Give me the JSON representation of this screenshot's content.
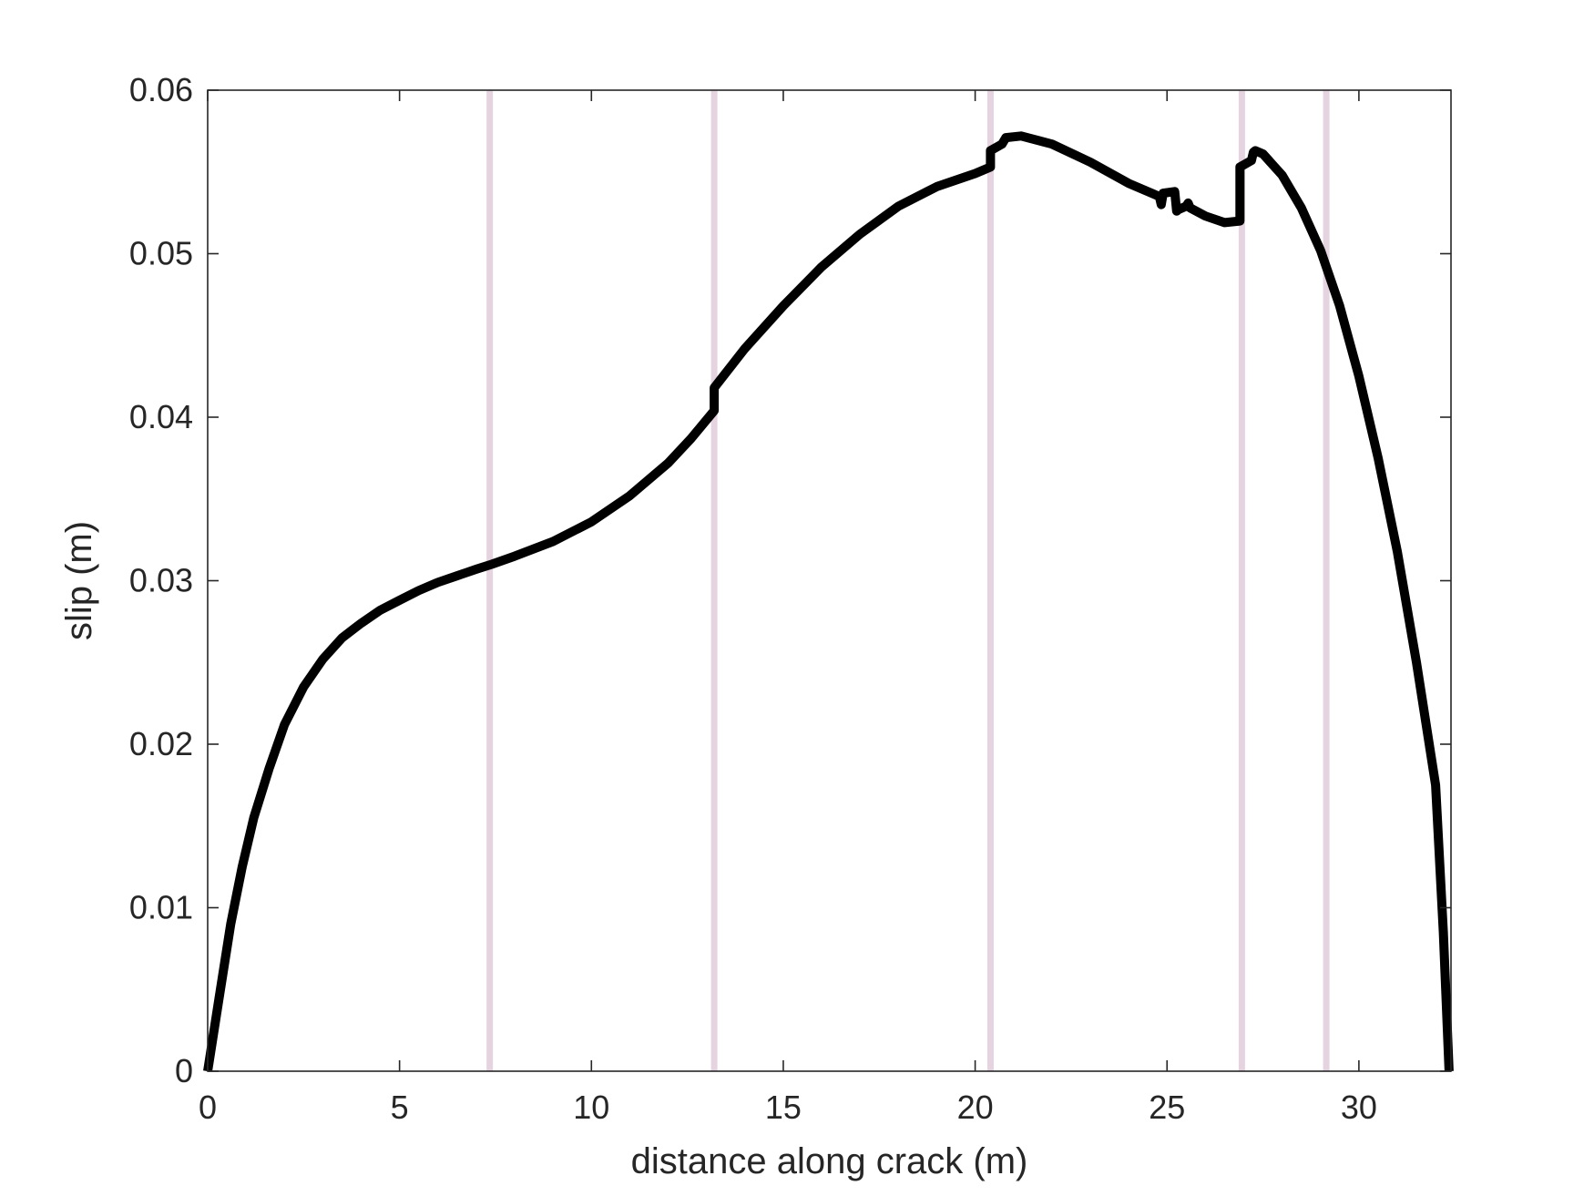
{
  "chart_data": {
    "type": "line",
    "title": "",
    "xlabel": "distance along crack (m)",
    "ylabel": "slip (m)",
    "xlim": [
      0,
      32.4
    ],
    "ylim": [
      0,
      0.06
    ],
    "grid": false,
    "legend": "none",
    "xticks": [
      0,
      5,
      10,
      15,
      20,
      25,
      30
    ],
    "xtick_labels": [
      "0",
      "5",
      "10",
      "15",
      "20",
      "25",
      "30"
    ],
    "yticks": [
      0,
      0.01,
      0.02,
      0.03,
      0.04,
      0.05,
      0.06
    ],
    "ytick_labels": [
      "0",
      "0.01",
      "0.02",
      "0.03",
      "0.04",
      "0.05",
      "0.06"
    ],
    "colors": {
      "line": "#000000",
      "markers": "#e6d3e0",
      "axes": "#262626"
    },
    "vertical_markers": [
      7.35,
      13.2,
      20.4,
      26.95,
      29.15
    ],
    "series": [
      {
        "x": [
          0,
          0.3,
          0.6,
          0.9,
          1.2,
          1.6,
          2.0,
          2.5,
          3.0,
          3.5,
          4.0,
          4.5,
          5.0,
          5.5,
          6.0,
          6.5,
          7.0,
          7.4,
          8.0,
          9.0,
          10.0,
          11.0,
          12.0,
          12.6,
          13.2,
          13.2,
          14.0,
          15.0,
          16.0,
          17.0,
          18.0,
          19.0,
          20.0,
          20.4,
          20.4,
          20.7,
          20.8,
          21.2,
          22.0,
          23.0,
          24.0,
          24.8,
          24.85,
          24.9,
          25.2,
          25.25,
          25.3,
          25.5,
          25.55,
          25.6,
          26.0,
          26.5,
          26.9,
          26.9,
          27.2,
          27.25,
          27.3,
          27.5,
          28.0,
          28.5,
          29.0,
          29.5,
          30.0,
          30.5,
          31.0,
          31.5,
          32.0,
          32.2,
          32.35
        ],
        "y": [
          0,
          0.0045,
          0.009,
          0.0125,
          0.0155,
          0.0185,
          0.0212,
          0.0235,
          0.0252,
          0.0265,
          0.0274,
          0.0282,
          0.0288,
          0.0294,
          0.0299,
          0.0303,
          0.0307,
          0.031,
          0.0315,
          0.0324,
          0.0336,
          0.0352,
          0.0372,
          0.0387,
          0.0404,
          0.0418,
          0.0442,
          0.0468,
          0.0492,
          0.0512,
          0.0529,
          0.0541,
          0.0549,
          0.0553,
          0.0563,
          0.0567,
          0.0571,
          0.0572,
          0.0567,
          0.0556,
          0.0543,
          0.0535,
          0.053,
          0.0537,
          0.0538,
          0.0526,
          0.0527,
          0.0529,
          0.0531,
          0.0528,
          0.0523,
          0.0519,
          0.052,
          0.0553,
          0.0557,
          0.0562,
          0.0563,
          0.0561,
          0.0548,
          0.0528,
          0.0502,
          0.0468,
          0.0425,
          0.0375,
          0.0318,
          0.025,
          0.0175,
          0.0085,
          0
        ]
      }
    ]
  }
}
